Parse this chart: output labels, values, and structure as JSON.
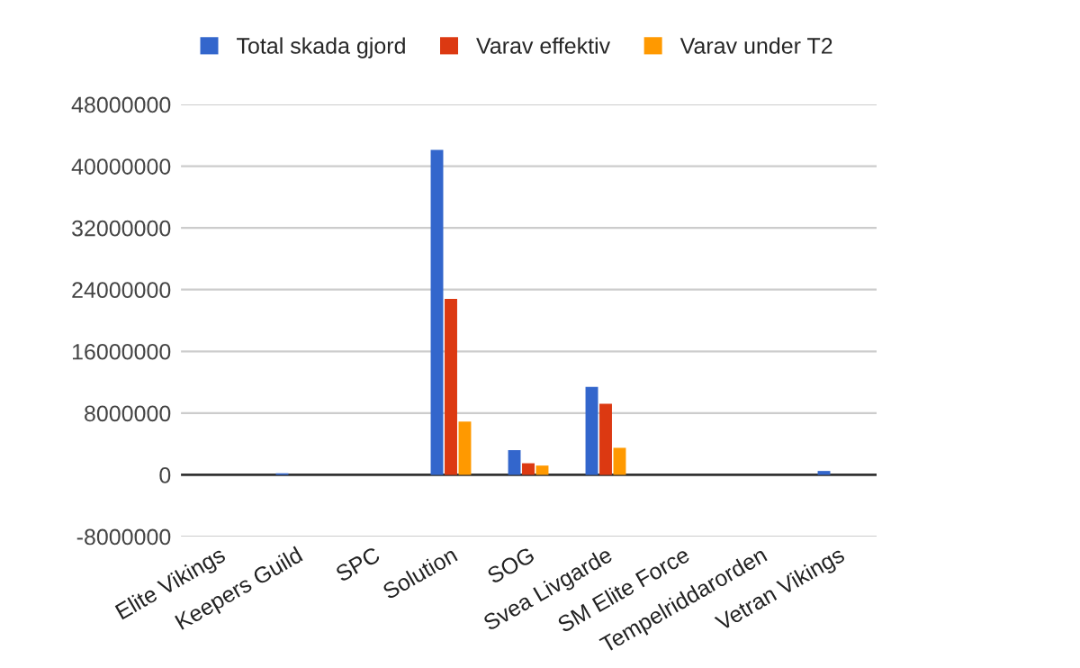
{
  "chart_data": {
    "type": "bar",
    "categories": [
      "Elite Vikings",
      "Keepers Guild",
      "SPC",
      "Solution",
      "SOG",
      "Svea Livgarde",
      "SM Elite Force",
      "Tempelriddarorden",
      "Vetran Vikings"
    ],
    "series": [
      {
        "name": "Total skada gjord",
        "color": "#3366cc",
        "values": [
          null,
          200000,
          null,
          42100000,
          3200000,
          11400000,
          null,
          null,
          500000
        ]
      },
      {
        "name": "Varav effektiv",
        "color": "#dc3912",
        "values": [
          null,
          null,
          null,
          22800000,
          1500000,
          9200000,
          null,
          null,
          null
        ]
      },
      {
        "name": "Varav under T2",
        "color": "#ff9900",
        "values": [
          null,
          null,
          null,
          6900000,
          1200000,
          3500000,
          null,
          null,
          null
        ]
      }
    ],
    "ylim": [
      -8000000,
      48000000
    ],
    "yticks": [
      -8000000,
      0,
      8000000,
      16000000,
      24000000,
      32000000,
      40000000,
      48000000
    ],
    "grid": "y",
    "legend": "top left"
  }
}
